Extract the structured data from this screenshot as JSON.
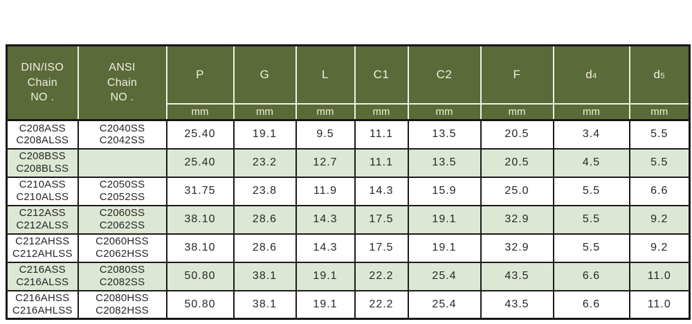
{
  "colors": {
    "page_bg": "#ffffff",
    "header_bg": "#5a6a38",
    "header_text": "#f1efdf",
    "header_divider": "#f2f1e3",
    "border_dark": "#1a1a1a",
    "shaded_row_bg": "#dde8d4",
    "plain_row_bg": "#ffffff",
    "data_text": "#262626"
  },
  "chart_data": {
    "type": "table",
    "unit_row_label": "mm",
    "header": {
      "din_lines": [
        "DIN/ISO",
        "Chain",
        "NO ."
      ],
      "ansi_lines": [
        "ANSI",
        "Chain",
        "NO ."
      ],
      "measure_columns": [
        {
          "label": "P",
          "sub": ""
        },
        {
          "label": "G",
          "sub": ""
        },
        {
          "label": "L",
          "sub": ""
        },
        {
          "label": "C1",
          "sub": ""
        },
        {
          "label": "C2",
          "sub": ""
        },
        {
          "label": "F",
          "sub": ""
        },
        {
          "label": "d",
          "sub": "4"
        },
        {
          "label": "d",
          "sub": "5"
        }
      ]
    },
    "rows": [
      {
        "din": [
          "C208ASS",
          "C208ALSS"
        ],
        "ansi": [
          "C2040SS",
          "C2042SS"
        ],
        "values": [
          "25.40",
          "19.1",
          "9.5",
          "11.1",
          "13.5",
          "20.5",
          "3.4",
          "5.5"
        ],
        "shaded": false
      },
      {
        "din": [
          "C208BSS",
          "C208BLSS"
        ],
        "ansi": [],
        "values": [
          "25.40",
          "23.2",
          "12.7",
          "11.1",
          "13.5",
          "20.5",
          "4.5",
          "5.5"
        ],
        "shaded": true
      },
      {
        "din": [
          "C210ASS",
          "C210ALSS"
        ],
        "ansi": [
          "C2050SS",
          "C2052SS"
        ],
        "values": [
          "31.75",
          "23.8",
          "11.9",
          "14.3",
          "15.9",
          "25.0",
          "5.5",
          "6.6"
        ],
        "shaded": false
      },
      {
        "din": [
          "C212ASS",
          "C212ALSS"
        ],
        "ansi": [
          "C2060SS",
          "C2062SS"
        ],
        "values": [
          "38.10",
          "28.6",
          "14.3",
          "17.5",
          "19.1",
          "32.9",
          "5.5",
          "9.2"
        ],
        "shaded": true
      },
      {
        "din": [
          "C212AHSS",
          "C212AHLSS"
        ],
        "ansi": [
          "C2060HSS",
          "C2062HSS"
        ],
        "values": [
          "38.10",
          "28.6",
          "14.3",
          "17.5",
          "19.1",
          "32.9",
          "5.5",
          "9.2"
        ],
        "shaded": false
      },
      {
        "din": [
          "C216ASS",
          "C216ALSS"
        ],
        "ansi": [
          "C2080SS",
          "C2082SS"
        ],
        "values": [
          "50.80",
          "38.1",
          "19.1",
          "22.2",
          "25.4",
          "43.5",
          "6.6",
          "11.0"
        ],
        "shaded": true
      },
      {
        "din": [
          "C216AHSS",
          "C216AHLSS"
        ],
        "ansi": [
          "C2080HSS",
          "C2082HSS"
        ],
        "values": [
          "50.80",
          "38.1",
          "19.1",
          "22.2",
          "25.4",
          "43.5",
          "6.6",
          "11.0"
        ],
        "shaded": false
      }
    ]
  }
}
